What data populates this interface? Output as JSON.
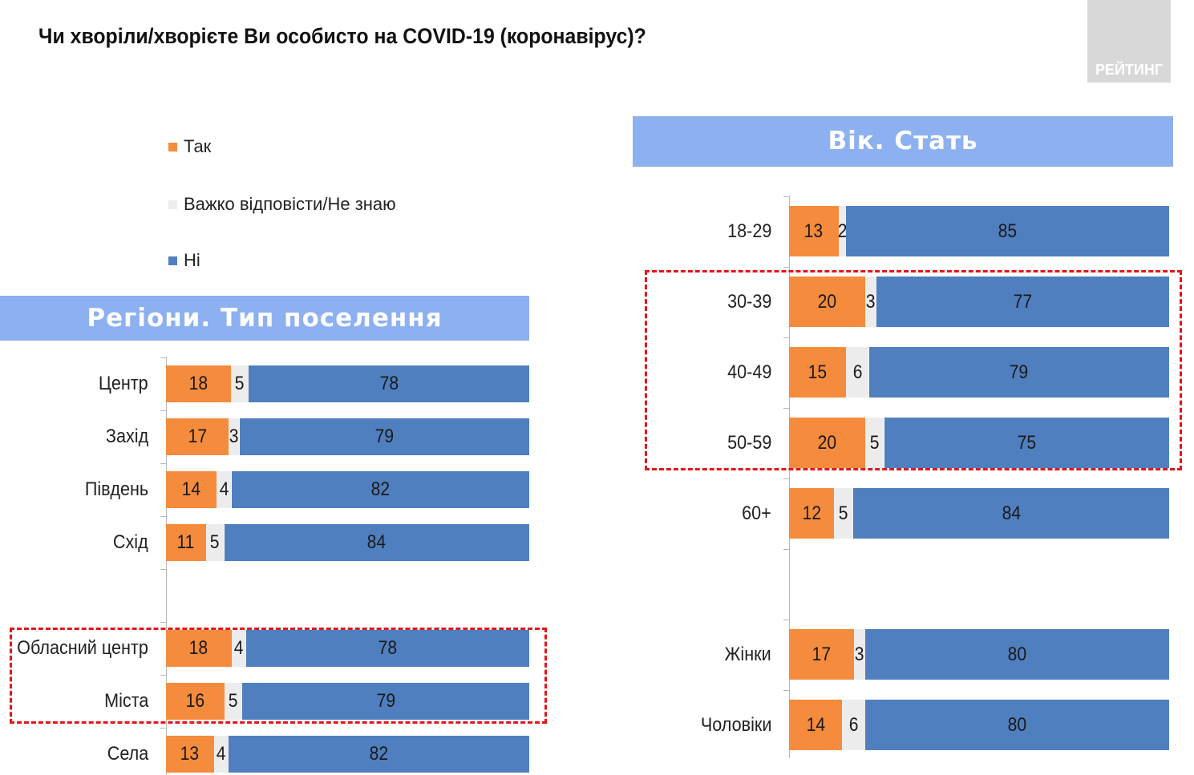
{
  "title": "Чи хворіли/хворієте Ви особисто на COVID-19 (коронавірус)?",
  "logo_text": "РЕЙТИНГ",
  "colors": {
    "yes": "#f58b3c",
    "dont_know": "#ececec",
    "no": "#4f7fbf",
    "banner": "#8db0f0",
    "highlight": "#e0161b"
  },
  "legend": [
    {
      "label": "Так",
      "color": "#f58b3c"
    },
    {
      "label": "Важко відповісти/Не знаю",
      "color": "#ececec"
    },
    {
      "label": "Ні",
      "color": "#4f7fbf"
    }
  ],
  "chart_data": [
    {
      "type": "bar",
      "stacked": true,
      "orientation": "horizontal",
      "title": "Регіони. Тип поселення",
      "categories": [
        "Центр",
        "Захід",
        "Південь",
        "Схід",
        "",
        "Обласний центр",
        "Міста",
        "Села"
      ],
      "series": [
        {
          "name": "Так",
          "values": [
            18,
            17,
            14,
            11,
            null,
            18,
            16,
            13
          ]
        },
        {
          "name": "Важко відповісти/Не знаю",
          "values": [
            5,
            3,
            4,
            5,
            null,
            4,
            5,
            4
          ]
        },
        {
          "name": "Ні",
          "values": [
            78,
            79,
            82,
            84,
            null,
            78,
            79,
            82
          ]
        }
      ],
      "highlighted_categories": [
        "Обласний центр",
        "Міста"
      ]
    },
    {
      "type": "bar",
      "stacked": true,
      "orientation": "horizontal",
      "title": "Вік. Стать",
      "categories": [
        "18-29",
        "30-39",
        "40-49",
        "50-59",
        "60+",
        "",
        "Жінки",
        "Чоловіки"
      ],
      "series": [
        {
          "name": "Так",
          "values": [
            13,
            20,
            15,
            20,
            12,
            null,
            17,
            14
          ]
        },
        {
          "name": "Важко відповісти/Не знаю",
          "values": [
            2,
            3,
            6,
            5,
            5,
            null,
            3,
            6
          ]
        },
        {
          "name": "Ні",
          "values": [
            85,
            77,
            79,
            75,
            84,
            null,
            80,
            80
          ]
        }
      ],
      "highlighted_categories": [
        "30-39",
        "40-49",
        "50-59"
      ]
    }
  ]
}
